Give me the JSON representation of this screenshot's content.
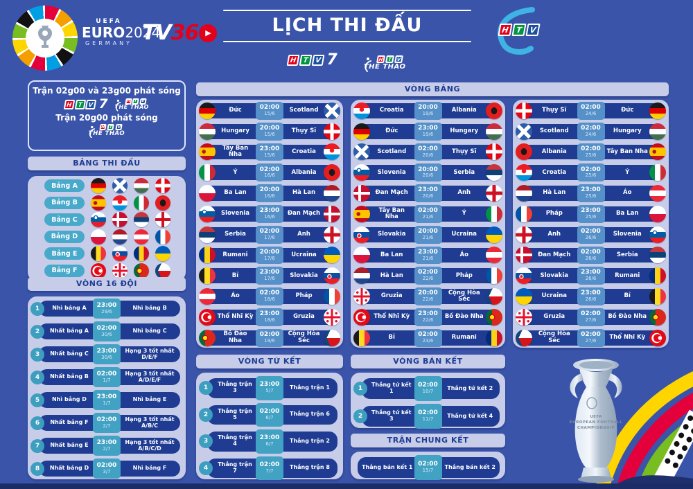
{
  "header": {
    "title": "LỊCH THI ĐẤU",
    "euro_logo": {
      "uefa": "UEFA",
      "euro": "EURO",
      "year": "2024",
      "country": "GERMANY"
    },
    "tv360": {
      "tv": "TV",
      "three_six": "36",
      "play": "▶"
    },
    "htv_letters": [
      "H",
      "T",
      "V"
    ],
    "htv7_suffix": "7",
    "thethao_label": "THỂ THAO"
  },
  "sidebar": {
    "broadcast": {
      "line1": "Trận 02g00 và 23g00 phát sóng",
      "line2": "Trận 20g00 phát sóng"
    },
    "groups_header": "BẢNG THI ĐẤU",
    "groups": [
      {
        "label": "Bảng A",
        "flags": [
          "de",
          "sct",
          "hu",
          "ch"
        ]
      },
      {
        "label": "Bảng B",
        "flags": [
          "es",
          "hr",
          "it",
          "al"
        ]
      },
      {
        "label": "Bảng C",
        "flags": [
          "si",
          "dk",
          "rs",
          "en"
        ]
      },
      {
        "label": "Bảng D",
        "flags": [
          "pl",
          "nl",
          "at",
          "fr"
        ]
      },
      {
        "label": "Bảng E",
        "flags": [
          "be",
          "sk",
          "ro",
          "ua"
        ]
      },
      {
        "label": "Bảng F",
        "flags": [
          "tr",
          "ge",
          "pt",
          "cz"
        ]
      }
    ],
    "r16_header": "VÒNG 16 ĐỘI",
    "r16": [
      {
        "num": "1",
        "home": "Nhì bảng A",
        "time": "23:00",
        "date": "29/6",
        "away": "Nhì bảng B"
      },
      {
        "num": "2",
        "home": "Nhất bảng A",
        "time": "02:00",
        "date": "30/6",
        "away": "Nhì bảng C"
      },
      {
        "num": "3",
        "home": "Nhất bảng C",
        "time": "23:00",
        "date": "30/6",
        "away": "Hạng 3 tốt nhất D/E/F"
      },
      {
        "num": "4",
        "home": "Nhất bảng B",
        "time": "02:00",
        "date": "1/7",
        "away": "Hạng 3 tốt nhất A/D/E/F"
      },
      {
        "num": "5",
        "home": "Nhì bảng D",
        "time": "23:00",
        "date": "1/7",
        "away": "Nhì bảng E"
      },
      {
        "num": "6",
        "home": "Nhất bảng F",
        "time": "02:00",
        "date": "2/7",
        "away": "Hạng 3 tốt nhất A/B/C"
      },
      {
        "num": "7",
        "home": "Nhất bảng E",
        "time": "23:00",
        "date": "2/7",
        "away": "Hạng 3 tốt nhất A/B/C/D"
      },
      {
        "num": "8",
        "home": "Nhất bảng D",
        "time": "02:00",
        "date": "3/7",
        "away": "Nhì bảng F"
      }
    ]
  },
  "group_stage": {
    "header": "VÒNG BẢNG",
    "columns": [
      [
        {
          "home": "Đức",
          "hf": "de",
          "time": "02:00",
          "date": "15/6",
          "away": "Scotland",
          "af": "sct"
        },
        {
          "home": "Hungary",
          "hf": "hu",
          "time": "20:00",
          "date": "15/6",
          "away": "Thụy Sĩ",
          "af": "ch"
        },
        {
          "home": "Tây Ban Nha",
          "hf": "es",
          "time": "23:00",
          "date": "15/6",
          "away": "Croatia",
          "af": "hr"
        },
        {
          "home": "Ý",
          "hf": "it",
          "time": "02:00",
          "date": "16/6",
          "away": "Albania",
          "af": "al"
        },
        {
          "home": "Ba Lan",
          "hf": "pl",
          "time": "20:00",
          "date": "16/6",
          "away": "Hà Lan",
          "af": "nl"
        },
        {
          "home": "Slovenia",
          "hf": "si",
          "time": "23:00",
          "date": "16/6",
          "away": "Đan Mạch",
          "af": "dk"
        },
        {
          "home": "Serbia",
          "hf": "rs",
          "time": "02:00",
          "date": "17/6",
          "away": "Anh",
          "af": "en"
        },
        {
          "home": "Rumani",
          "hf": "ro",
          "time": "20:00",
          "date": "17/6",
          "away": "Ucraina",
          "af": "ua"
        },
        {
          "home": "Bỉ",
          "hf": "be",
          "time": "23:00",
          "date": "17/6",
          "away": "Slovakia",
          "af": "sk"
        },
        {
          "home": "Áo",
          "hf": "at",
          "time": "02:00",
          "date": "18/6",
          "away": "Pháp",
          "af": "fr"
        },
        {
          "home": "Thổ Nhĩ Kỳ",
          "hf": "tr",
          "time": "23:00",
          "date": "18/6",
          "away": "Gruzia",
          "af": "ge"
        },
        {
          "home": "Bồ Đào Nha",
          "hf": "pt",
          "time": "02:00",
          "date": "19/6",
          "away": "Cộng Hòa Séc",
          "af": "cz"
        }
      ],
      [
        {
          "home": "Croatia",
          "hf": "hr",
          "time": "20:00",
          "date": "19/6",
          "away": "Albania",
          "af": "al"
        },
        {
          "home": "Đức",
          "hf": "de",
          "time": "23:00",
          "date": "19/6",
          "away": "Hungary",
          "af": "hu"
        },
        {
          "home": "Scotland",
          "hf": "sct",
          "time": "02:00",
          "date": "20/6",
          "away": "Thụy Sĩ",
          "af": "ch"
        },
        {
          "home": "Slovenia",
          "hf": "si",
          "time": "20:00",
          "date": "20/6",
          "away": "Serbia",
          "af": "rs"
        },
        {
          "home": "Đan Mạch",
          "hf": "dk",
          "time": "23:00",
          "date": "20/6",
          "away": "Anh",
          "af": "en"
        },
        {
          "home": "Tây Ban Nha",
          "hf": "es",
          "time": "02:00",
          "date": "21/6",
          "away": "Ý",
          "af": "it"
        },
        {
          "home": "Slovakia",
          "hf": "sk",
          "time": "20:00",
          "date": "21/6",
          "away": "Ucraina",
          "af": "ua"
        },
        {
          "home": "Ba Lan",
          "hf": "pl",
          "time": "23:00",
          "date": "21/6",
          "away": "Áo",
          "af": "at"
        },
        {
          "home": "Hà Lan",
          "hf": "nl",
          "time": "02:00",
          "date": "22/6",
          "away": "Pháp",
          "af": "fr"
        },
        {
          "home": "Gruzia",
          "hf": "ge",
          "time": "20:00",
          "date": "22/6",
          "away": "Cộng Hòa Séc",
          "af": "cz"
        },
        {
          "home": "Thổ Nhĩ Kỳ",
          "hf": "tr",
          "time": "23:00",
          "date": "22/6",
          "away": "Bồ Đào Nha",
          "af": "pt"
        },
        {
          "home": "Bỉ",
          "hf": "be",
          "time": "02:00",
          "date": "23/6",
          "away": "Rumani",
          "af": "ro"
        }
      ],
      [
        {
          "home": "Thụy Sĩ",
          "hf": "ch",
          "time": "02:00",
          "date": "24/6",
          "away": "Đức",
          "af": "de"
        },
        {
          "home": "Scotland",
          "hf": "sct",
          "time": "02:00",
          "date": "24/6",
          "away": "Hungary",
          "af": "hu"
        },
        {
          "home": "Albania",
          "hf": "al",
          "time": "02:00",
          "date": "25/6",
          "away": "Tây Ban Nha",
          "af": "es"
        },
        {
          "home": "Croatia",
          "hf": "hr",
          "time": "02:00",
          "date": "25/6",
          "away": "Ý",
          "af": "it"
        },
        {
          "home": "Hà Lan",
          "hf": "nl",
          "time": "23:00",
          "date": "25/6",
          "away": "Áo",
          "af": "at"
        },
        {
          "home": "Pháp",
          "hf": "fr",
          "time": "23:00",
          "date": "25/6",
          "away": "Ba Lan",
          "af": "pl"
        },
        {
          "home": "Anh",
          "hf": "en",
          "time": "02:00",
          "date": "26/6",
          "away": "Slovenia",
          "af": "si"
        },
        {
          "home": "Đan Mạch",
          "hf": "dk",
          "time": "02:00",
          "date": "26/6",
          "away": "Serbia",
          "af": "rs"
        },
        {
          "home": "Slovakia",
          "hf": "sk",
          "time": "23:00",
          "date": "26/6",
          "away": "Rumani",
          "af": "ro"
        },
        {
          "home": "Ucraina",
          "hf": "ua",
          "time": "23:00",
          "date": "26/6",
          "away": "Bỉ",
          "af": "be"
        },
        {
          "home": "Gruzia",
          "hf": "ge",
          "time": "02:00",
          "date": "27/6",
          "away": "Bồ Đào Nha",
          "af": "pt"
        },
        {
          "home": "Cộng Hòa Séc",
          "hf": "cz",
          "time": "02:00",
          "date": "27/6",
          "away": "Thổ Nhĩ Kỳ",
          "af": "tr"
        }
      ]
    ]
  },
  "knockout": {
    "qf": {
      "header": "VÒNG TỨ KẾT",
      "matches": [
        {
          "num": "1",
          "home": "Thắng trận 3",
          "time": "23:00",
          "date": "5/7",
          "away": "Thắng trận 1"
        },
        {
          "num": "2",
          "home": "Thắng trận 5",
          "time": "02:00",
          "date": "6/7",
          "away": "Thắng trận 6"
        },
        {
          "num": "3",
          "home": "Thắng trận 4",
          "time": "23:00",
          "date": "6/7",
          "away": "Thắng trận 2"
        },
        {
          "num": "4",
          "home": "Thắng trận 7",
          "time": "02:00",
          "date": "7/7",
          "away": "Thắng trận 8"
        }
      ]
    },
    "sf": {
      "header": "VÒNG BÁN KẾT",
      "matches": [
        {
          "num": "1",
          "home": "Thắng tứ kết 1",
          "time": "02:00",
          "date": "10/7",
          "away": "Thắng tứ kết 2"
        },
        {
          "num": "2",
          "home": "Thắng tứ kết 3",
          "time": "02:00",
          "date": "11/7",
          "away": "Thắng tứ kết 4"
        }
      ]
    },
    "final": {
      "header": "TRẬN CHUNG KẾT",
      "matches": [
        {
          "home": "Thắng bán kết 1",
          "time": "02:00",
          "date": "15/7",
          "away": "Thắng bán kết 2"
        }
      ]
    }
  },
  "trophy": {
    "line1": "UEFA",
    "line2": "EUROPEAN FOOTBALL",
    "line3": "CHAMPIONSHIP"
  },
  "colors": {
    "page_bg": "#3a54aa",
    "panel": "#c7cce8",
    "pill_navy": "#1f3c92",
    "time_blue": "#5590c8",
    "time_teal": "#42a2c3",
    "accent_teal": "#49a9cb",
    "header_text": "#1e3c94",
    "htv_h": "#e2001a",
    "htv_t": "#009640",
    "htv_v": "#1d4f9f"
  }
}
